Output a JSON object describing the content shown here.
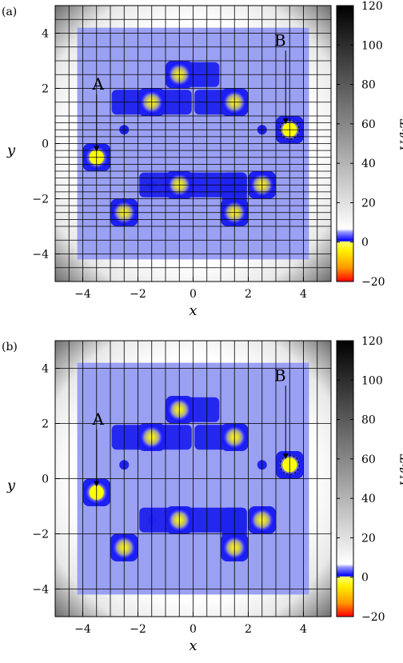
{
  "chart_data": [
    {
      "type": "heatmap",
      "panel_label": "(a)",
      "xlabel": "x",
      "ylabel": "y",
      "xlim": [
        -5,
        5
      ],
      "ylim": [
        -5,
        5
      ],
      "x_ticks": [
        -4,
        -2,
        0,
        2,
        4
      ],
      "y_ticks": [
        -4,
        -2,
        0,
        2,
        4
      ],
      "grid": "vertical lines at every 0.5 in x; horizontal lines every 0.25 in y for y between -3 and 1, every 0.5 elsewhere",
      "colorbar": {
        "label": "U/kT",
        "range": [
          -20,
          120
        ],
        "ticks": [
          -20,
          0,
          20,
          40,
          60,
          80,
          100,
          120
        ]
      },
      "wells": [
        {
          "x": -3.5,
          "y": -0.5
        },
        {
          "x": -2.5,
          "y": -2.5
        },
        {
          "x": -1.5,
          "y": 1.5
        },
        {
          "x": -0.5,
          "y": 2.5
        },
        {
          "x": -0.5,
          "y": -1.5
        },
        {
          "x": 1.5,
          "y": 1.5
        },
        {
          "x": 1.5,
          "y": -2.5
        },
        {
          "x": 2.5,
          "y": -1.5
        },
        {
          "x": 3.5,
          "y": 0.5
        }
      ],
      "annotations": [
        {
          "text": "A",
          "x": -3.5,
          "y": -0.5
        },
        {
          "text": "B",
          "x": 3.5,
          "y": 0.5
        }
      ]
    },
    {
      "type": "heatmap",
      "panel_label": "(b)",
      "xlabel": "x",
      "ylabel": "y",
      "xlim": [
        -5,
        5
      ],
      "ylim": [
        -5,
        5
      ],
      "x_ticks": [
        -4,
        -2,
        0,
        2,
        4
      ],
      "y_ticks": [
        -4,
        -2,
        0,
        2,
        4
      ],
      "grid": "vertical lines at every 0.5 in x; horizontal lines every 2 in y",
      "colorbar": {
        "label": "U/kT",
        "range": [
          -20,
          120
        ],
        "ticks": [
          -20,
          0,
          20,
          40,
          60,
          80,
          100,
          120
        ]
      },
      "wells": [
        {
          "x": -3.5,
          "y": -0.5
        },
        {
          "x": -2.5,
          "y": -2.5
        },
        {
          "x": -1.5,
          "y": 1.5
        },
        {
          "x": -0.5,
          "y": 2.5
        },
        {
          "x": -0.5,
          "y": -1.5
        },
        {
          "x": 1.5,
          "y": 1.5
        },
        {
          "x": 1.5,
          "y": -2.5
        },
        {
          "x": 2.5,
          "y": -1.5
        },
        {
          "x": 3.5,
          "y": 0.5
        }
      ],
      "annotations": [
        {
          "text": "A",
          "x": -3.5,
          "y": -0.5
        },
        {
          "text": "B",
          "x": 3.5,
          "y": 0.5
        }
      ]
    }
  ]
}
